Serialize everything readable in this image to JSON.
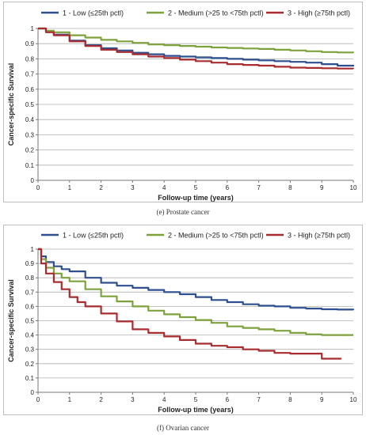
{
  "captions": [
    "(e) Prostate cancer",
    "(f) Ovarian cancer"
  ],
  "chart_data": [
    {
      "type": "line",
      "xlabel": "Follow-up time (years)",
      "ylabel": "Cancer-specific Survival",
      "xlim": [
        0,
        10
      ],
      "ylim": [
        0,
        1
      ],
      "xticks": [
        0,
        1,
        2,
        3,
        4,
        5,
        6,
        7,
        8,
        9,
        10
      ],
      "yticks": [
        0,
        0.1,
        0.2,
        0.3,
        0.4,
        0.5,
        0.6,
        0.7,
        0.8,
        0.9,
        1
      ],
      "grid": "horizontal",
      "legend": "top",
      "series": [
        {
          "name": "1 - Low (≤25th pctl)",
          "color": "#2e4f8f",
          "x": [
            0,
            0.25,
            0.5,
            1,
            1.5,
            2,
            2.5,
            3,
            3.5,
            4,
            4.5,
            5,
            5.5,
            6,
            6.5,
            7,
            7.5,
            8,
            8.5,
            9,
            9.5,
            10
          ],
          "y": [
            1,
            0.98,
            0.96,
            0.92,
            0.89,
            0.87,
            0.855,
            0.84,
            0.83,
            0.82,
            0.815,
            0.81,
            0.805,
            0.8,
            0.795,
            0.79,
            0.785,
            0.78,
            0.775,
            0.765,
            0.755,
            0.75
          ]
        },
        {
          "name": "2 - Medium (>25 to <75th pctl)",
          "color": "#7da23b",
          "x": [
            0,
            0.25,
            0.5,
            1,
            1.5,
            2,
            2.5,
            3,
            3.5,
            4,
            4.5,
            5,
            5.5,
            6,
            6.5,
            7,
            7.5,
            8,
            8.5,
            9,
            9.5,
            10
          ],
          "y": [
            1,
            0.985,
            0.975,
            0.955,
            0.94,
            0.925,
            0.915,
            0.905,
            0.895,
            0.89,
            0.885,
            0.88,
            0.875,
            0.872,
            0.868,
            0.865,
            0.86,
            0.855,
            0.85,
            0.845,
            0.842,
            0.84
          ]
        },
        {
          "name": "3 - High (≥75th pctl)",
          "color": "#a82c2f",
          "x": [
            0,
            0.25,
            0.5,
            1,
            1.5,
            2,
            2.5,
            3,
            3.5,
            4,
            4.5,
            5,
            5.5,
            6,
            6.5,
            7,
            7.5,
            8,
            8.5,
            9,
            9.5,
            10
          ],
          "y": [
            1,
            0.975,
            0.955,
            0.915,
            0.885,
            0.86,
            0.845,
            0.83,
            0.815,
            0.805,
            0.795,
            0.785,
            0.775,
            0.765,
            0.76,
            0.755,
            0.748,
            0.742,
            0.74,
            0.738,
            0.736,
            0.735
          ]
        }
      ]
    },
    {
      "type": "line",
      "xlabel": "Follow-up time (years)",
      "ylabel": "Cancer-specific Survival",
      "xlim": [
        0,
        10
      ],
      "ylim": [
        0,
        1
      ],
      "xticks": [
        0,
        1,
        2,
        3,
        4,
        5,
        6,
        7,
        8,
        9,
        10
      ],
      "yticks": [
        0,
        0.1,
        0.2,
        0.3,
        0.4,
        0.5,
        0.6,
        0.7,
        0.8,
        0.9,
        1
      ],
      "grid": "horizontal",
      "legend": "top",
      "series": [
        {
          "name": "1 - Low (≤25th pctl)",
          "color": "#2e4f8f",
          "x": [
            0,
            0.1,
            0.25,
            0.5,
            0.75,
            1,
            1.5,
            2,
            2.5,
            3,
            3.5,
            4,
            4.5,
            5,
            5.5,
            6,
            6.5,
            7,
            7.5,
            8,
            8.5,
            9,
            9.5,
            10
          ],
          "y": [
            1,
            0.95,
            0.91,
            0.88,
            0.86,
            0.845,
            0.8,
            0.765,
            0.745,
            0.73,
            0.715,
            0.7,
            0.685,
            0.665,
            0.645,
            0.63,
            0.615,
            0.605,
            0.6,
            0.59,
            0.585,
            0.58,
            0.578,
            0.575
          ]
        },
        {
          "name": "2 - Medium (>25 to <75th pctl)",
          "color": "#7da23b",
          "x": [
            0,
            0.1,
            0.25,
            0.5,
            0.75,
            1,
            1.5,
            2,
            2.5,
            3,
            3.5,
            4,
            4.5,
            5,
            5.5,
            6,
            6.5,
            7,
            7.5,
            8,
            8.5,
            9,
            9.5,
            10
          ],
          "y": [
            1,
            0.93,
            0.87,
            0.83,
            0.8,
            0.775,
            0.72,
            0.67,
            0.635,
            0.6,
            0.57,
            0.545,
            0.525,
            0.505,
            0.485,
            0.46,
            0.45,
            0.44,
            0.43,
            0.415,
            0.405,
            0.4,
            0.4,
            0.4
          ]
        },
        {
          "name": "3 - High (≥75th pctl)",
          "color": "#a82c2f",
          "x": [
            0,
            0.1,
            0.25,
            0.5,
            0.75,
            1,
            1.25,
            1.5,
            2,
            2.5,
            3,
            3.5,
            4,
            4.5,
            5,
            5.5,
            6,
            6.5,
            7,
            7.5,
            8,
            8.5,
            8.95,
            9,
            9.6
          ],
          "y": [
            1,
            0.9,
            0.83,
            0.77,
            0.72,
            0.665,
            0.63,
            0.6,
            0.55,
            0.495,
            0.44,
            0.415,
            0.39,
            0.365,
            0.34,
            0.325,
            0.315,
            0.3,
            0.29,
            0.275,
            0.27,
            0.27,
            0.27,
            0.235,
            0.23
          ]
        }
      ]
    }
  ]
}
